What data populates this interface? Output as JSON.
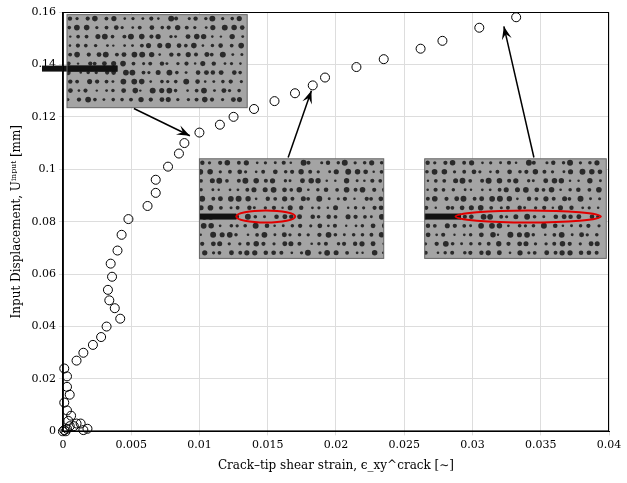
{
  "chart_data": {
    "type": "scatter",
    "x_label": "Crack–tip shear strain, ϵ_xy^crack [∼]",
    "y_label": "Input Displacement, Uⁱⁿᵖᵘᵗ [mm]",
    "x": [
      0,
      0.0002,
      0.0001,
      0.0003,
      0.0005,
      0.0008,
      0.001,
      0.0004,
      0.0013,
      0.0015,
      0.0018,
      0.0006,
      0.0003,
      0.0001,
      0.0005,
      0.0003,
      0.0003,
      0.0001,
      0.001,
      0.0015,
      0.0022,
      0.0028,
      0.0032,
      0.0042,
      0.0038,
      0.0034,
      0.0033,
      0.0036,
      0.0035,
      0.004,
      0.0043,
      0.0048,
      0.0062,
      0.0068,
      0.0068,
      0.0077,
      0.0085,
      0.0089,
      0.01,
      0.0115,
      0.0125,
      0.014,
      0.0155,
      0.017,
      0.0183,
      0.0192,
      0.0215,
      0.0235,
      0.0262,
      0.0278,
      0.0305,
      0.0332
    ],
    "values": [
      0,
      0,
      0.0005,
      0.001,
      0.002,
      0.002,
      0.003,
      0.004,
      0.003,
      0.0005,
      0.001,
      0.006,
      0.008,
      0.011,
      0.014,
      0.017,
      0.021,
      0.024,
      0.027,
      0.03,
      0.033,
      0.036,
      0.04,
      0.043,
      0.047,
      0.05,
      0.054,
      0.059,
      0.064,
      0.069,
      0.075,
      0.081,
      0.086,
      0.091,
      0.096,
      0.101,
      0.106,
      0.11,
      0.114,
      0.117,
      0.12,
      0.123,
      0.126,
      0.129,
      0.132,
      0.135,
      0.139,
      0.142,
      0.146,
      0.149,
      0.154,
      0.158
    ],
    "color": "#000000",
    "marker": "circle",
    "xlim": [
      0,
      0.04
    ],
    "xticks": [
      0,
      0.005,
      0.01,
      0.015,
      0.02,
      0.025,
      0.03,
      0.035,
      0.04
    ],
    "ylim": [
      0,
      0.16
    ],
    "yticks": [
      0,
      0.02,
      0.04,
      0.06,
      0.08,
      0.1,
      0.12,
      0.14,
      0.16
    ],
    "grid": true
  }
}
